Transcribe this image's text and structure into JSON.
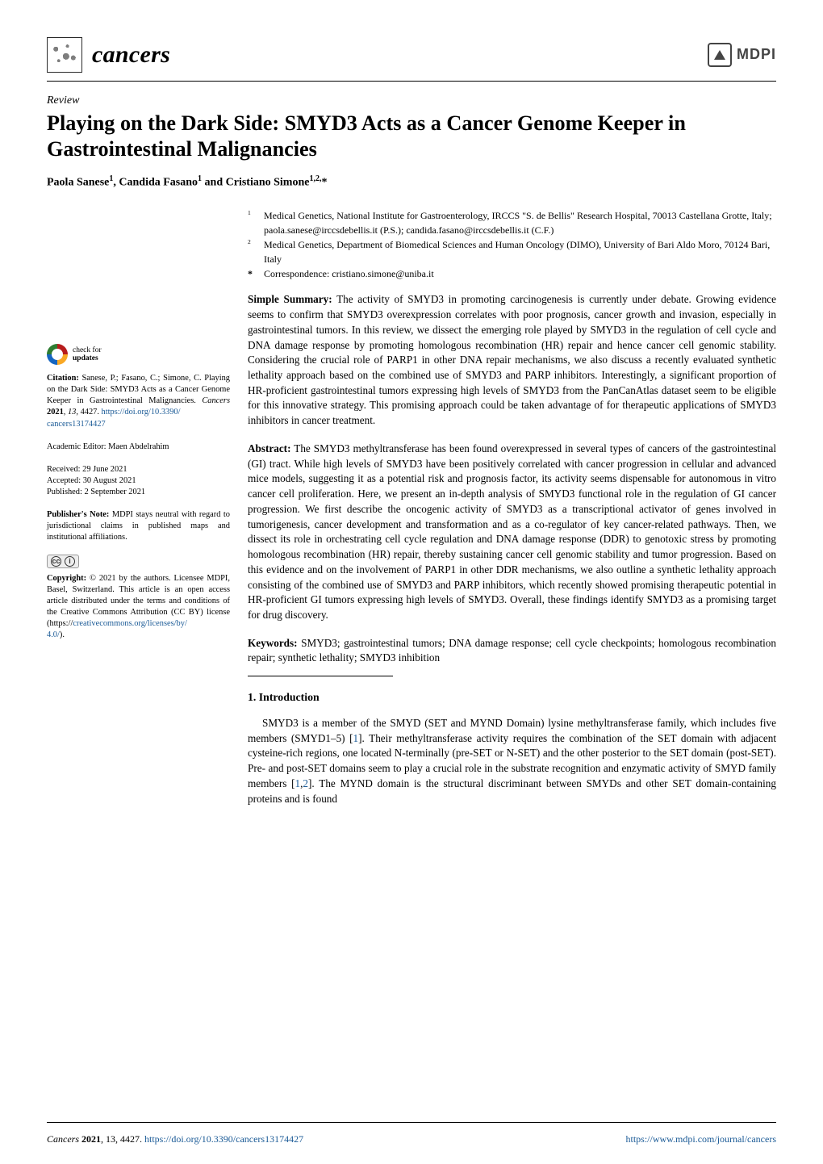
{
  "journal_name": "cancers",
  "publisher_logo_text": "MDPI",
  "article_type": "Review",
  "title": "Playing on the Dark Side: SMYD3 Acts as a Cancer Genome Keeper in Gastrointestinal Malignancies",
  "authors_html": "Paola Sanese ",
  "authors": {
    "line": "Paola Sanese",
    "a1": {
      "name": "Paola Sanese",
      "affil": "1"
    },
    "sep1": ", ",
    "a2": {
      "name": "Candida Fasano",
      "affil": "1"
    },
    "sep2": " and ",
    "a3": {
      "name": "Cristiano Simone",
      "affil": "1,2,",
      "corr": "*"
    }
  },
  "affiliations": {
    "a1_num": "1",
    "a1": "Medical Genetics, National Institute for Gastroenterology, IRCCS \"S. de Bellis\" Research Hospital, 70013 Castellana Grotte, Italy; paola.sanese@irccsdebellis.it (P.S.); candida.fasano@irccsdebellis.it (C.F.)",
    "a2_num": "2",
    "a2": "Medical Genetics, Department of Biomedical Sciences and Human Oncology (DIMO), University of Bari Aldo Moro, 70124 Bari, Italy",
    "corr_mark": "*",
    "corr": "Correspondence: cristiano.simone@uniba.it"
  },
  "simple_summary_label": "Simple Summary:",
  "simple_summary": " The activity of SMYD3 in promoting carcinogenesis is currently under debate. Growing evidence seems to confirm that SMYD3 overexpression correlates with poor prognosis, cancer growth and invasion, especially in gastrointestinal tumors. In this review, we dissect the emerging role played by SMYD3 in the regulation of cell cycle and DNA damage response by promoting homologous recombination (HR) repair and hence cancer cell genomic stability. Considering the crucial role of PARP1 in other DNA repair mechanisms, we also discuss a recently evaluated synthetic lethality approach based on the combined use of SMYD3 and PARP inhibitors. Interestingly, a significant proportion of HR-proficient gastrointestinal tumors expressing high levels of SMYD3 from the PanCanAtlas dataset seem to be eligible for this innovative strategy. This promising approach could be taken advantage of for therapeutic applications of SMYD3 inhibitors in cancer treatment.",
  "abstract_label": "Abstract:",
  "abstract": " The SMYD3 methyltransferase has been found overexpressed in several types of cancers of the gastrointestinal (GI) tract. While high levels of SMYD3 have been positively correlated with cancer progression in cellular and advanced mice models, suggesting it as a potential risk and prognosis factor, its activity seems dispensable for autonomous in vitro cancer cell proliferation. Here, we present an in-depth analysis of SMYD3 functional role in the regulation of GI cancer progression. We first describe the oncogenic activity of SMYD3 as a transcriptional activator of genes involved in tumorigenesis, cancer development and transformation and as a co-regulator of key cancer-related pathways. Then, we dissect its role in orchestrating cell cycle regulation and DNA damage response (DDR) to genotoxic stress by promoting homologous recombination (HR) repair, thereby sustaining cancer cell genomic stability and tumor progression. Based on this evidence and on the involvement of PARP1 in other DDR mechanisms, we also outline a synthetic lethality approach consisting of the combined use of SMYD3 and PARP inhibitors, which recently showed promising therapeutic potential in HR-proficient GI tumors expressing high levels of SMYD3. Overall, these findings identify SMYD3 as a promising target for drug discovery.",
  "keywords_label": "Keywords:",
  "keywords": " SMYD3; gastrointestinal tumors; DNA damage response; cell cycle checkpoints; homologous recombination repair; synthetic lethality; SMYD3 inhibition",
  "section1_heading": "1. Introduction",
  "intro_p1": "SMYD3 is a member of the SMYD (SET and MYND Domain) lysine methyltransferase family, which includes five members (SMYD1–5) [1]. Their methyltransferase activity requires the combination of the SET domain with adjacent cysteine-rich regions, one located N-terminally (pre-SET or N-SET) and the other posterior to the SET domain (post-SET). Pre- and post-SET domains seem to play a crucial role in the substrate recognition and enzymatic activity of SMYD family members [1,2]. The MYND domain is the structural discriminant between SMYDs and other SET domain-containing proteins and is found",
  "sidebar": {
    "check_updates_top": "check for",
    "check_updates_bottom": "updates",
    "citation_label": "Citation:",
    "citation": " Sanese, P.; Fasano, C.; Simone, C. Playing on the Dark Side: SMYD3 Acts as a Cancer Genome Keeper in Gastrointestinal Malignancies. Cancers 2021, 13, 4427. https://doi.org/10.3390/cancers13174427",
    "citation_link_text": "https://doi.org/10.3390/",
    "citation_link_text2": "cancers13174427",
    "editor_label": "Academic Editor: ",
    "editor": "Maen Abdelrahim",
    "received_label": "Received: ",
    "received": "29 June 2021",
    "accepted_label": "Accepted: ",
    "accepted": "30 August 2021",
    "published_label": "Published: ",
    "published": "2 September 2021",
    "pubnote_label": "Publisher's Note:",
    "pubnote": " MDPI stays neutral with regard to jurisdictional claims in published maps and institutional affiliations.",
    "copyright_label": "Copyright:",
    "copyright": " © 2021 by the authors. Licensee MDPI, Basel, Switzerland. This article is an open access article distributed under the terms and conditions of the Creative Commons Attribution (CC BY) license (https://creativecommons.org/licenses/by/4.0/).",
    "cc_link": "creativecommons.org/licenses/by/",
    "cc_link2": "4.0/"
  },
  "footer": {
    "left_italic": "Cancers ",
    "left_bold": "2021",
    "left_rest": ", 13, 4427. ",
    "left_link": "https://doi.org/10.3390/cancers13174427",
    "right_link": "https://www.mdpi.com/journal/cancers"
  },
  "colors": {
    "link": "#1a5a96",
    "text": "#000000",
    "rule": "#000000"
  }
}
